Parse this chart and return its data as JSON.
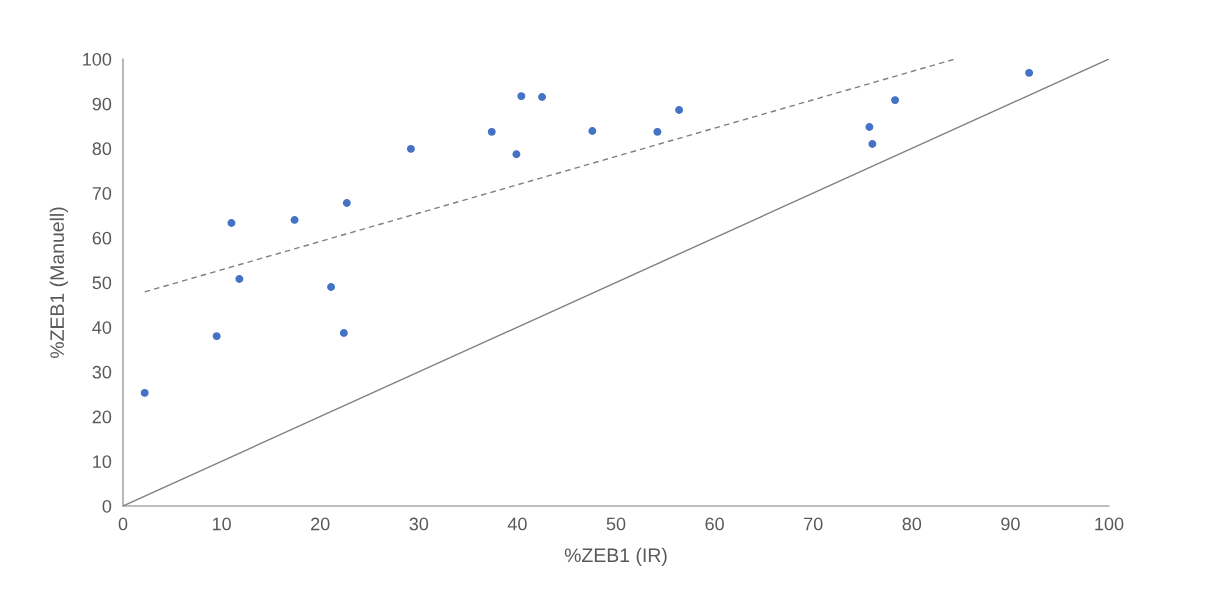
{
  "chart_data": {
    "type": "scatter",
    "xlabel": "%ZEB1 (IR)",
    "ylabel": "%ZEB1 (Manuell)",
    "xlim": [
      0,
      100
    ],
    "ylim": [
      0,
      100
    ],
    "xticks": [
      0,
      10,
      20,
      30,
      40,
      50,
      60,
      70,
      80,
      90,
      100
    ],
    "yticks": [
      0,
      10,
      20,
      30,
      40,
      50,
      60,
      70,
      80,
      90,
      100
    ],
    "grid": false,
    "series": [
      {
        "color": "#4472c4",
        "marker": "circle",
        "x": [
          2.2,
          9.5,
          11.0,
          11.8,
          17.4,
          21.1,
          22.4,
          22.7,
          29.2,
          37.4,
          39.9,
          40.4,
          42.5,
          47.6,
          54.2,
          56.4,
          75.7,
          76.0,
          78.3,
          91.9
        ],
        "values": [
          25.3,
          38.0,
          63.3,
          50.8,
          64.0,
          49.0,
          38.7,
          67.8,
          79.9,
          83.7,
          78.7,
          91.7,
          91.5,
          83.9,
          83.7,
          88.6,
          84.8,
          81.0,
          90.8,
          96.9
        ]
      },
      {
        "type": "line",
        "color": "#7f7f7f",
        "line_style": "dashed",
        "marker": "none",
        "x": [
          2.2,
          84.4
        ],
        "values": [
          47.9,
          100
        ]
      },
      {
        "type": "line",
        "color": "#7f7f7f",
        "line_style": "solid",
        "marker": "none",
        "x": [
          0,
          100
        ],
        "values": [
          0,
          100
        ]
      }
    ]
  }
}
